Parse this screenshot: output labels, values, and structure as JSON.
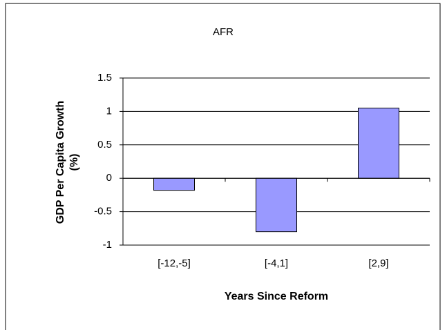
{
  "chart_data": {
    "type": "bar",
    "title": "AFR",
    "y_label": [
      "GDP Per Capita Growth",
      "(%)"
    ],
    "x_label": "Years Since Reform",
    "categories": [
      "[-12,-5]",
      "[-4,1]",
      "[2,9]"
    ],
    "values": [
      -0.18,
      -0.8,
      1.05
    ],
    "color": "#9999ff",
    "ylim": [
      -1,
      1.5
    ],
    "yticks": [
      -1,
      -0.5,
      0,
      0.5,
      1,
      1.5
    ],
    "grid": true
  }
}
